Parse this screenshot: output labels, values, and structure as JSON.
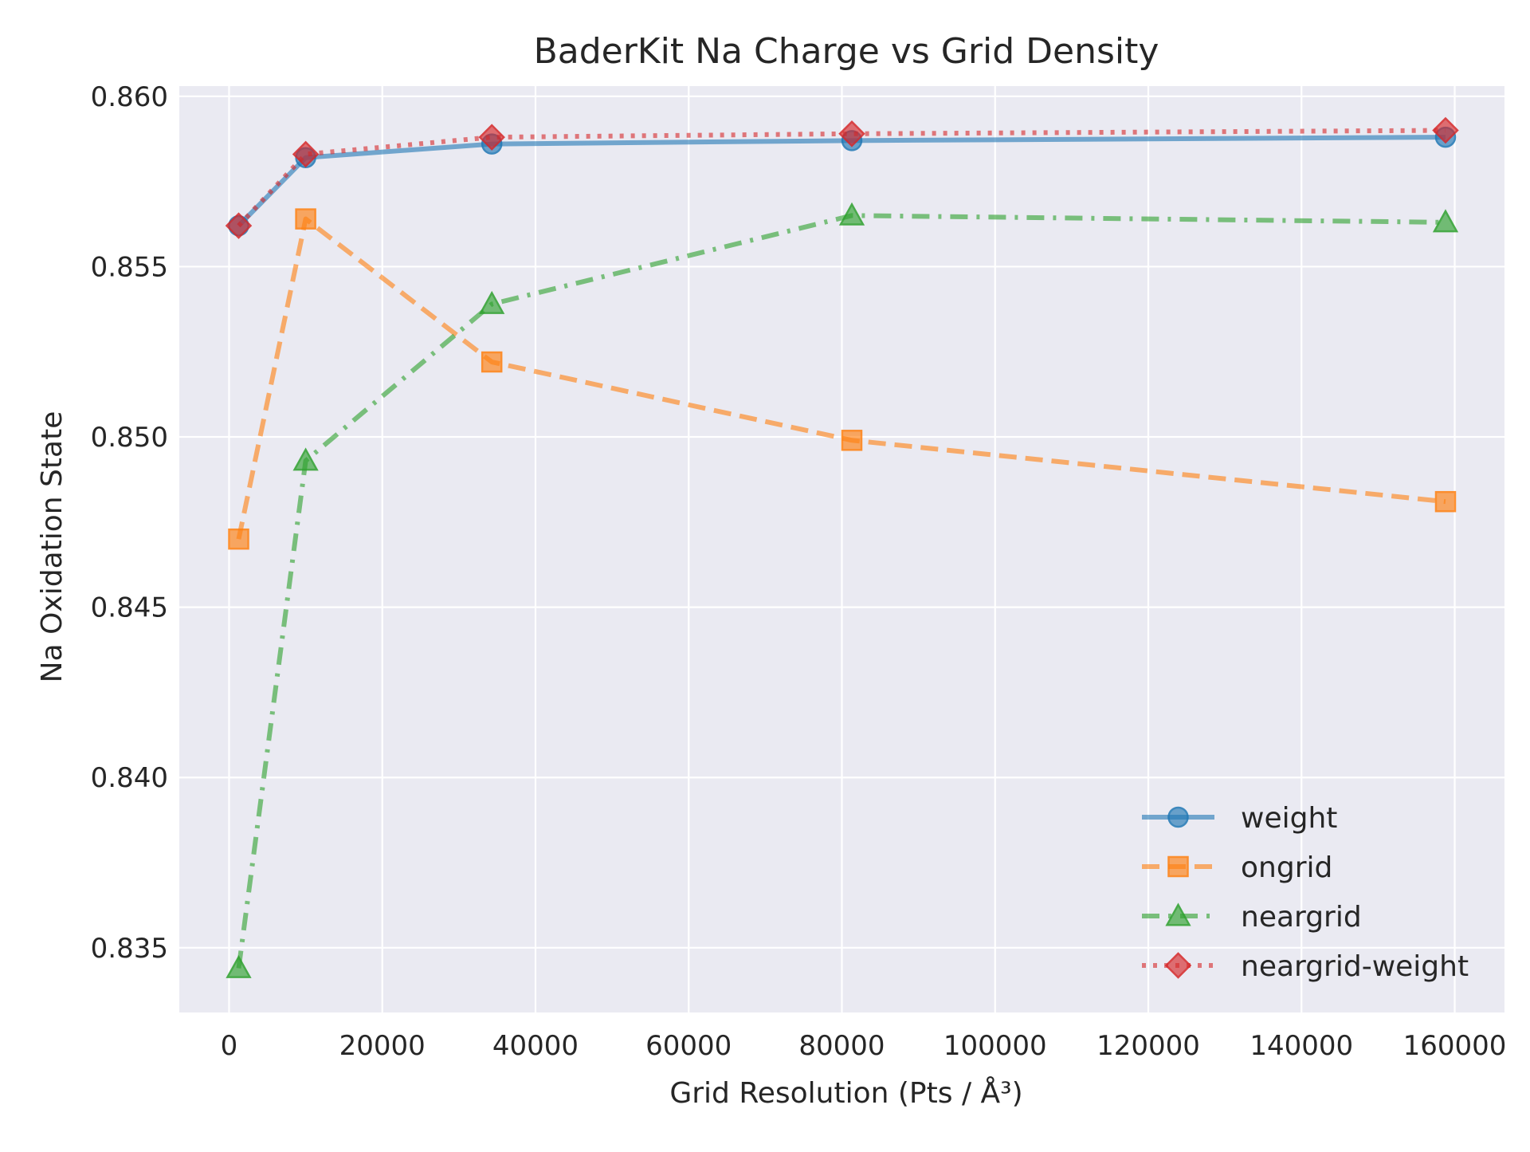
{
  "chart_data": {
    "type": "line",
    "title": "BaderKit Na Charge vs Grid Density",
    "xlabel": "Grid Resolution (Pts / Å³)",
    "ylabel": "Na Oxidation State",
    "xlim": [
      -6500,
      166500
    ],
    "ylim": [
      0.8331,
      0.8603
    ],
    "xticks": [
      "0",
      "20000",
      "40000",
      "60000",
      "80000",
      "100000",
      "120000",
      "140000",
      "160000"
    ],
    "xtick_values": [
      0,
      20000,
      40000,
      60000,
      80000,
      100000,
      120000,
      140000,
      160000
    ],
    "yticks": [
      "0.835",
      "0.840",
      "0.845",
      "0.850",
      "0.855",
      "0.860"
    ],
    "ytick_values": [
      0.835,
      0.84,
      0.845,
      0.85,
      0.855,
      0.86
    ],
    "grid": true,
    "legend_position": "lower-right",
    "x": [
      1250,
      10000,
      34300,
      81300,
      158800
    ],
    "series": [
      {
        "name": "weight",
        "values": [
          0.8562,
          0.8582,
          0.8586,
          0.8587,
          0.8588
        ],
        "color": "#1f77b4",
        "marker": "circle",
        "linestyle": "solid"
      },
      {
        "name": "ongrid",
        "values": [
          0.847,
          0.8564,
          0.8522,
          0.8499,
          0.8481
        ],
        "color": "#ff7f0e",
        "marker": "square",
        "linestyle": "dashed"
      },
      {
        "name": "neargrid",
        "values": [
          0.8344,
          0.8493,
          0.8539,
          0.8565,
          0.8563
        ],
        "color": "#2ca02c",
        "marker": "triangle",
        "linestyle": "dashdot"
      },
      {
        "name": "neargrid-weight",
        "values": [
          0.8562,
          0.8583,
          0.8588,
          0.8589,
          0.859
        ],
        "color": "#d62728",
        "marker": "diamond",
        "linestyle": "dotted"
      }
    ]
  }
}
